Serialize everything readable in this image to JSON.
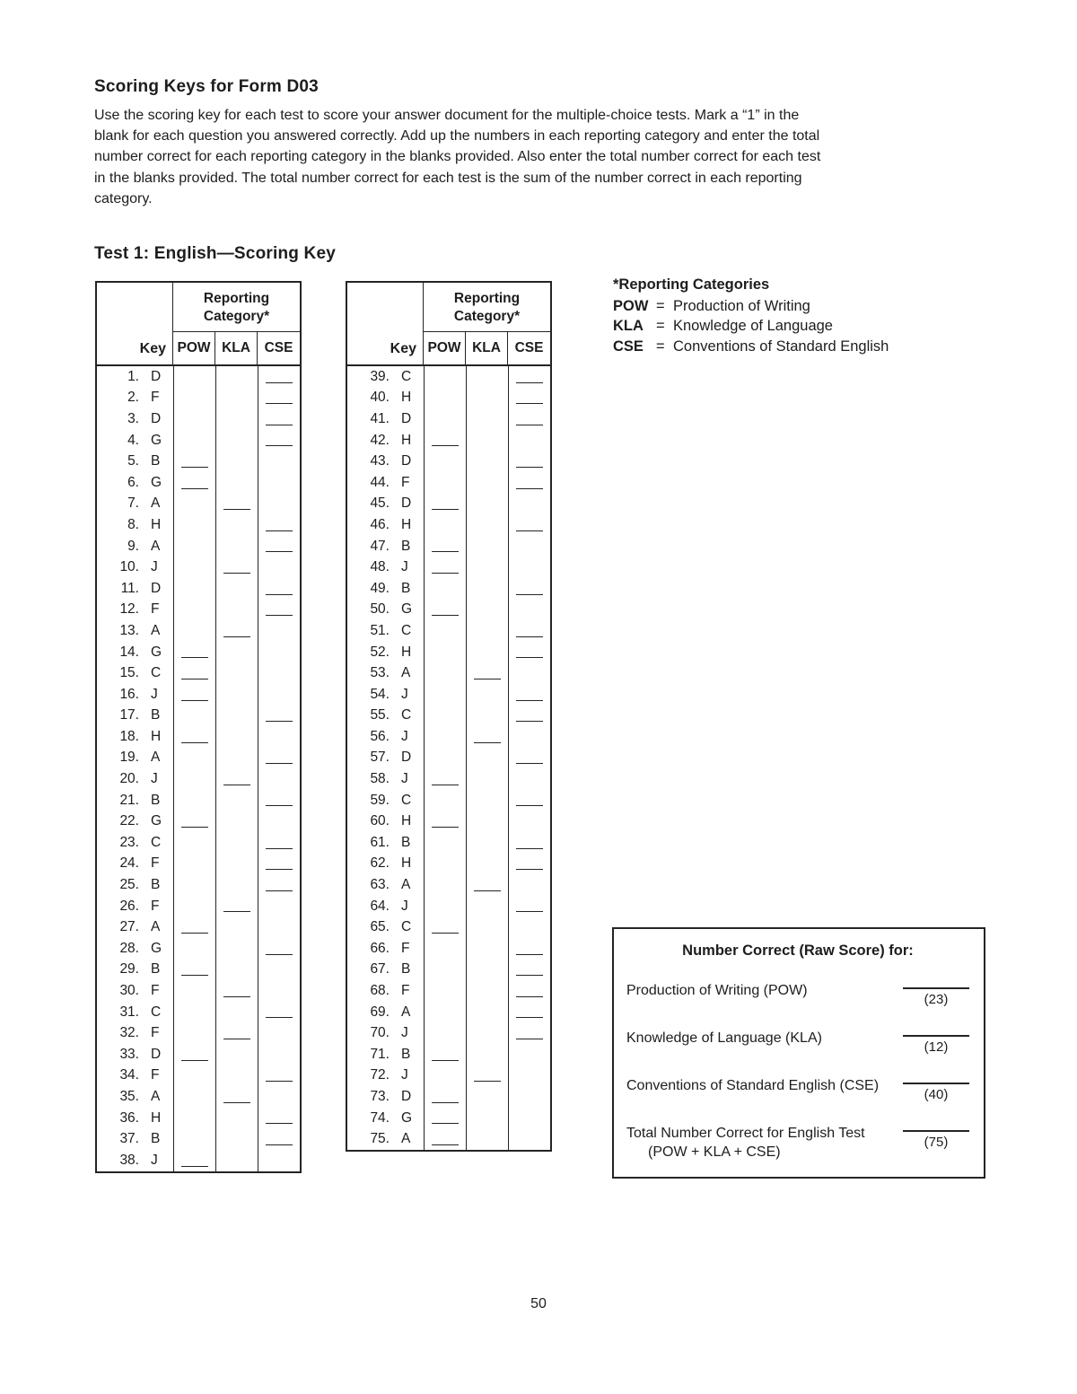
{
  "page": {
    "title": "Scoring Keys for Form D03",
    "intro_lines": [
      "Use the scoring key for each test to score your answer document for the multiple-choice tests. Mark a “1” in the",
      "blank for each question you answered correctly. Add up the numbers in each reporting category and enter the total",
      "number correct for each reporting category in the blanks provided. Also enter the total number correct for each test",
      "in the blanks provided. The total number correct for each test is the sum of the number correct in each reporting",
      "category."
    ],
    "section_title": "Test 1: English—Scoring Key",
    "page_number": "50"
  },
  "table_header": {
    "key_label": "Key",
    "category_label": "Reporting Category*",
    "columns": [
      "POW",
      "KLA",
      "CSE"
    ]
  },
  "tables": [
    {
      "rows": [
        {
          "n": "1.",
          "k": "D",
          "c": "CSE"
        },
        {
          "n": "2.",
          "k": "F",
          "c": "CSE"
        },
        {
          "n": "3.",
          "k": "D",
          "c": "CSE"
        },
        {
          "n": "4.",
          "k": "G",
          "c": "CSE"
        },
        {
          "n": "5.",
          "k": "B",
          "c": "POW"
        },
        {
          "n": "6.",
          "k": "G",
          "c": "POW"
        },
        {
          "n": "7.",
          "k": "A",
          "c": "KLA"
        },
        {
          "n": "8.",
          "k": "H",
          "c": "CSE"
        },
        {
          "n": "9.",
          "k": "A",
          "c": "CSE"
        },
        {
          "n": "10.",
          "k": "J",
          "c": "KLA"
        },
        {
          "n": "11.",
          "k": "D",
          "c": "CSE"
        },
        {
          "n": "12.",
          "k": "F",
          "c": "CSE"
        },
        {
          "n": "13.",
          "k": "A",
          "c": "KLA"
        },
        {
          "n": "14.",
          "k": "G",
          "c": "POW"
        },
        {
          "n": "15.",
          "k": "C",
          "c": "POW"
        },
        {
          "n": "16.",
          "k": "J",
          "c": "POW"
        },
        {
          "n": "17.",
          "k": "B",
          "c": "CSE"
        },
        {
          "n": "18.",
          "k": "H",
          "c": "POW"
        },
        {
          "n": "19.",
          "k": "A",
          "c": "CSE"
        },
        {
          "n": "20.",
          "k": "J",
          "c": "KLA"
        },
        {
          "n": "21.",
          "k": "B",
          "c": "CSE"
        },
        {
          "n": "22.",
          "k": "G",
          "c": "POW"
        },
        {
          "n": "23.",
          "k": "C",
          "c": "CSE"
        },
        {
          "n": "24.",
          "k": "F",
          "c": "CSE"
        },
        {
          "n": "25.",
          "k": "B",
          "c": "CSE"
        },
        {
          "n": "26.",
          "k": "F",
          "c": "KLA"
        },
        {
          "n": "27.",
          "k": "A",
          "c": "POW"
        },
        {
          "n": "28.",
          "k": "G",
          "c": "CSE"
        },
        {
          "n": "29.",
          "k": "B",
          "c": "POW"
        },
        {
          "n": "30.",
          "k": "F",
          "c": "KLA"
        },
        {
          "n": "31.",
          "k": "C",
          "c": "CSE"
        },
        {
          "n": "32.",
          "k": "F",
          "c": "KLA"
        },
        {
          "n": "33.",
          "k": "D",
          "c": "POW"
        },
        {
          "n": "34.",
          "k": "F",
          "c": "CSE"
        },
        {
          "n": "35.",
          "k": "A",
          "c": "KLA"
        },
        {
          "n": "36.",
          "k": "H",
          "c": "CSE"
        },
        {
          "n": "37.",
          "k": "B",
          "c": "CSE"
        },
        {
          "n": "38.",
          "k": "J",
          "c": "POW"
        }
      ]
    },
    {
      "rows": [
        {
          "n": "39.",
          "k": "C",
          "c": "CSE"
        },
        {
          "n": "40.",
          "k": "H",
          "c": "CSE"
        },
        {
          "n": "41.",
          "k": "D",
          "c": "CSE"
        },
        {
          "n": "42.",
          "k": "H",
          "c": "POW"
        },
        {
          "n": "43.",
          "k": "D",
          "c": "CSE"
        },
        {
          "n": "44.",
          "k": "F",
          "c": "CSE"
        },
        {
          "n": "45.",
          "k": "D",
          "c": "POW"
        },
        {
          "n": "46.",
          "k": "H",
          "c": "CSE"
        },
        {
          "n": "47.",
          "k": "B",
          "c": "POW"
        },
        {
          "n": "48.",
          "k": "J",
          "c": "POW"
        },
        {
          "n": "49.",
          "k": "B",
          "c": "CSE"
        },
        {
          "n": "50.",
          "k": "G",
          "c": "POW"
        },
        {
          "n": "51.",
          "k": "C",
          "c": "CSE"
        },
        {
          "n": "52.",
          "k": "H",
          "c": "CSE"
        },
        {
          "n": "53.",
          "k": "A",
          "c": "KLA"
        },
        {
          "n": "54.",
          "k": "J",
          "c": "CSE"
        },
        {
          "n": "55.",
          "k": "C",
          "c": "CSE"
        },
        {
          "n": "56.",
          "k": "J",
          "c": "KLA"
        },
        {
          "n": "57.",
          "k": "D",
          "c": "CSE"
        },
        {
          "n": "58.",
          "k": "J",
          "c": "POW"
        },
        {
          "n": "59.",
          "k": "C",
          "c": "CSE"
        },
        {
          "n": "60.",
          "k": "H",
          "c": "POW"
        },
        {
          "n": "61.",
          "k": "B",
          "c": "CSE"
        },
        {
          "n": "62.",
          "k": "H",
          "c": "CSE"
        },
        {
          "n": "63.",
          "k": "A",
          "c": "KLA"
        },
        {
          "n": "64.",
          "k": "J",
          "c": "CSE"
        },
        {
          "n": "65.",
          "k": "C",
          "c": "POW"
        },
        {
          "n": "66.",
          "k": "F",
          "c": "CSE"
        },
        {
          "n": "67.",
          "k": "B",
          "c": "CSE"
        },
        {
          "n": "68.",
          "k": "F",
          "c": "CSE"
        },
        {
          "n": "69.",
          "k": "A",
          "c": "CSE"
        },
        {
          "n": "70.",
          "k": "J",
          "c": "CSE"
        },
        {
          "n": "71.",
          "k": "B",
          "c": "POW"
        },
        {
          "n": "72.",
          "k": "J",
          "c": "KLA"
        },
        {
          "n": "73.",
          "k": "D",
          "c": "POW"
        },
        {
          "n": "74.",
          "k": "G",
          "c": "POW"
        },
        {
          "n": "75.",
          "k": "A",
          "c": "POW"
        }
      ]
    }
  ],
  "legend": {
    "title": "*Reporting Categories",
    "separator": "=",
    "entries": [
      {
        "abbr": "POW",
        "name": "Production of Writing"
      },
      {
        "abbr": "KLA",
        "name": "Knowledge of Language"
      },
      {
        "abbr": "CSE",
        "name": "Conventions of Standard English"
      }
    ]
  },
  "raw_score_box": {
    "title": "Number Correct (Raw Score) for:",
    "rows": [
      {
        "label": "Production of Writing (POW)",
        "label2": "",
        "max": "(23)"
      },
      {
        "label": "Knowledge of Language (KLA)",
        "label2": "",
        "max": "(12)"
      },
      {
        "label": "Conventions of Standard English (CSE)",
        "label2": "",
        "max": "(40)"
      },
      {
        "label": "Total Number Correct for English Test",
        "label2": "(POW + KLA + CSE)",
        "max": "(75)"
      }
    ]
  }
}
